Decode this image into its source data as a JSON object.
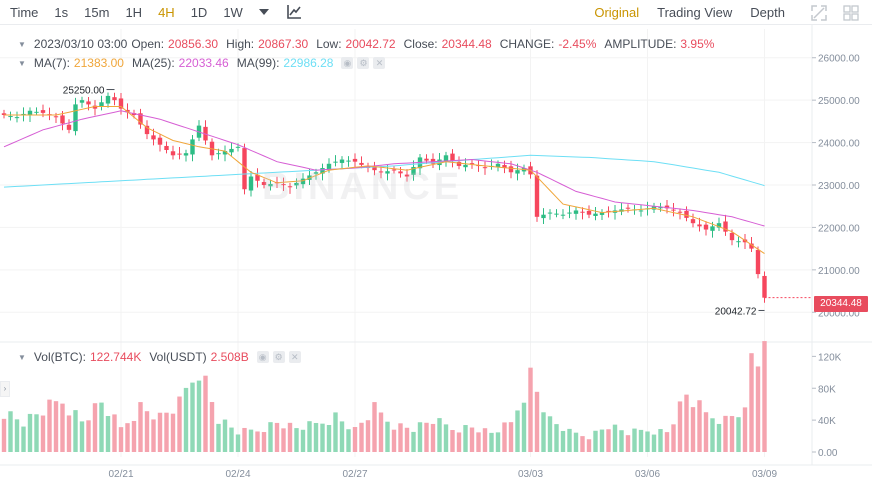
{
  "toolbar": {
    "time_label": "Time",
    "intervals": [
      "1s",
      "15m",
      "1H",
      "4H",
      "1D",
      "1W"
    ],
    "active_interval": "4H",
    "right_tabs": [
      "Original",
      "Trading View",
      "Depth"
    ],
    "active_right_tab": "Original"
  },
  "legend": {
    "date": "2023/03/10 03:00",
    "open_label": "Open:",
    "open": "20856.30",
    "high_label": "High:",
    "high": "20867.30",
    "low_label": "Low:",
    "low": "20042.72",
    "close_label": "Close:",
    "close": "20344.48",
    "change_label": "CHANGE:",
    "change": "-2.45%",
    "amplitude_label": "AMPLITUDE:",
    "amplitude": "3.95%",
    "ma7_label": "MA(7):",
    "ma7": "21383.00",
    "ma25_label": "MA(25):",
    "ma25": "22033.46",
    "ma99_label": "MA(99):",
    "ma99": "22986.28",
    "vol_btc_label": "Vol(BTC):",
    "vol_btc": "122.744K",
    "vol_usdt_label": "Vol(USDT)",
    "vol_usdt": "2.508B"
  },
  "watermark": "BINANCE",
  "current_price": "20344.48",
  "high_marker": "25250.00",
  "low_marker": "20042.72",
  "colors": {
    "up": "#2ebd85",
    "down": "#f6465d",
    "up_vol": "#8fd9b6",
    "down_vol": "#f5a3ae",
    "ma7": "#f0a63a",
    "ma25": "#d65ed4",
    "ma99": "#6ddff5",
    "accent": "#c99400"
  },
  "chart_data": {
    "type": "candlestick",
    "price_axis": {
      "ylim": [
        19700,
        26300
      ],
      "ticks": [
        20000,
        21000,
        22000,
        23000,
        24000,
        25000,
        26000
      ],
      "tick_labels": [
        "20000.00",
        "21000.00",
        "22000.00",
        "23000.00",
        "24000.00",
        "25000.00",
        "26000.00"
      ]
    },
    "volume_axis": {
      "ylim": [
        0,
        128000
      ],
      "ticks": [
        0,
        40000,
        80000,
        120000
      ],
      "tick_labels": [
        "0.00",
        "40K",
        "80K",
        "120K"
      ]
    },
    "x_tick_labels": [
      "02/21",
      "02/24",
      "02/27",
      "03/03",
      "03/06",
      "03/09"
    ],
    "x_tick_candle_index": [
      18,
      36,
      54,
      81,
      99,
      117
    ],
    "price_path": [
      [
        0,
        24650
      ],
      [
        2,
        24600
      ],
      [
        4,
        24750
      ],
      [
        6,
        24700
      ],
      [
        8,
        24600
      ],
      [
        10,
        24300
      ],
      [
        11,
        24900
      ],
      [
        12,
        25000
      ],
      [
        14,
        24800
      ],
      [
        16,
        25100
      ],
      [
        17,
        25000
      ],
      [
        18,
        24800
      ],
      [
        20,
        24650
      ],
      [
        22,
        24200
      ],
      [
        24,
        23950
      ],
      [
        26,
        23700
      ],
      [
        28,
        23750
      ],
      [
        30,
        24400
      ],
      [
        32,
        23700
      ],
      [
        34,
        23800
      ],
      [
        36,
        23900
      ],
      [
        37,
        22900
      ],
      [
        38,
        23200
      ],
      [
        40,
        23000
      ],
      [
        42,
        23050
      ],
      [
        44,
        22950
      ],
      [
        46,
        23150
      ],
      [
        48,
        23300
      ],
      [
        50,
        23500
      ],
      [
        52,
        23600
      ],
      [
        54,
        23550
      ],
      [
        56,
        23400
      ],
      [
        58,
        23300
      ],
      [
        60,
        23350
      ],
      [
        62,
        23200
      ],
      [
        64,
        23650
      ],
      [
        66,
        23500
      ],
      [
        68,
        23700
      ],
      [
        70,
        23450
      ],
      [
        72,
        23500
      ],
      [
        74,
        23400
      ],
      [
        76,
        23500
      ],
      [
        78,
        23300
      ],
      [
        80,
        23400
      ],
      [
        81,
        23250
      ],
      [
        82,
        22250
      ],
      [
        84,
        22350
      ],
      [
        86,
        22300
      ],
      [
        88,
        22400
      ],
      [
        90,
        22300
      ],
      [
        92,
        22350
      ],
      [
        94,
        22400
      ],
      [
        96,
        22450
      ],
      [
        98,
        22400
      ],
      [
        100,
        22500
      ],
      [
        102,
        22450
      ],
      [
        104,
        22350
      ],
      [
        106,
        22100
      ],
      [
        108,
        21950
      ],
      [
        110,
        22100
      ],
      [
        112,
        21700
      ],
      [
        114,
        21650
      ],
      [
        115,
        21500
      ],
      [
        116,
        20900
      ],
      [
        117,
        20344
      ]
    ],
    "ma7_path": [
      [
        0,
        24650
      ],
      [
        8,
        24650
      ],
      [
        14,
        24850
      ],
      [
        18,
        24850
      ],
      [
        22,
        24350
      ],
      [
        26,
        24050
      ],
      [
        30,
        23900
      ],
      [
        34,
        23800
      ],
      [
        38,
        23300
      ],
      [
        42,
        23050
      ],
      [
        46,
        23100
      ],
      [
        50,
        23350
      ],
      [
        56,
        23450
      ],
      [
        62,
        23350
      ],
      [
        68,
        23550
      ],
      [
        74,
        23450
      ],
      [
        81,
        23350
      ],
      [
        86,
        22550
      ],
      [
        92,
        22350
      ],
      [
        100,
        22450
      ],
      [
        106,
        22250
      ],
      [
        112,
        21900
      ],
      [
        117,
        21383
      ]
    ],
    "ma25_path": [
      [
        0,
        23900
      ],
      [
        6,
        24300
      ],
      [
        12,
        24550
      ],
      [
        18,
        24750
      ],
      [
        24,
        24550
      ],
      [
        30,
        24250
      ],
      [
        36,
        23950
      ],
      [
        42,
        23550
      ],
      [
        48,
        23350
      ],
      [
        54,
        23400
      ],
      [
        60,
        23500
      ],
      [
        66,
        23550
      ],
      [
        72,
        23600
      ],
      [
        78,
        23500
      ],
      [
        82,
        23300
      ],
      [
        88,
        22850
      ],
      [
        94,
        22600
      ],
      [
        100,
        22500
      ],
      [
        106,
        22400
      ],
      [
        112,
        22250
      ],
      [
        117,
        22033
      ]
    ],
    "ma99_path": [
      [
        0,
        22950
      ],
      [
        12,
        23050
      ],
      [
        24,
        23150
      ],
      [
        36,
        23250
      ],
      [
        48,
        23350
      ],
      [
        60,
        23450
      ],
      [
        72,
        23600
      ],
      [
        81,
        23700
      ],
      [
        90,
        23650
      ],
      [
        100,
        23550
      ],
      [
        110,
        23300
      ],
      [
        117,
        22986
      ]
    ],
    "volume_path": [
      [
        0,
        52000
      ],
      [
        3,
        38000
      ],
      [
        6,
        52000
      ],
      [
        9,
        66000
      ],
      [
        12,
        40000
      ],
      [
        15,
        62000
      ],
      [
        18,
        30000
      ],
      [
        21,
        58000
      ],
      [
        24,
        44000
      ],
      [
        27,
        60000
      ],
      [
        30,
        112000
      ],
      [
        33,
        42000
      ],
      [
        36,
        25000
      ],
      [
        39,
        28000
      ],
      [
        42,
        38000
      ],
      [
        45,
        30000
      ],
      [
        48,
        35000
      ],
      [
        51,
        46000
      ],
      [
        54,
        28000
      ],
      [
        57,
        54000
      ],
      [
        60,
        35000
      ],
      [
        63,
        30000
      ],
      [
        66,
        40000
      ],
      [
        69,
        30000
      ],
      [
        72,
        32000
      ],
      [
        75,
        24000
      ],
      [
        78,
        36000
      ],
      [
        81,
        98000
      ],
      [
        84,
        40000
      ],
      [
        87,
        25000
      ],
      [
        90,
        20000
      ],
      [
        93,
        34000
      ],
      [
        96,
        24000
      ],
      [
        99,
        28000
      ],
      [
        102,
        26000
      ],
      [
        105,
        72000
      ],
      [
        108,
        48000
      ],
      [
        111,
        42000
      ],
      [
        113,
        52000
      ],
      [
        114,
        50000
      ],
      [
        115,
        124000
      ],
      [
        117,
        120000
      ]
    ]
  }
}
